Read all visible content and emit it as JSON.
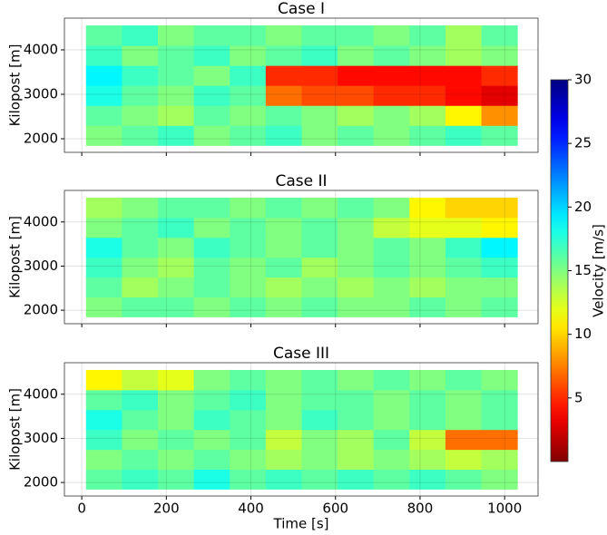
{
  "chart_data": [
    {
      "type": "heatmap",
      "title": "Case I",
      "ylabel": "Kilopost [m]",
      "x": [
        52.5,
        137.5,
        222.5,
        307.5,
        392.5,
        477.5,
        562.5,
        647.5,
        732.5,
        817.5,
        902.5,
        987.5
      ],
      "y": [
        2075,
        2525,
        2975,
        3425,
        3875,
        4325
      ],
      "values": [
        [
          15,
          16,
          17,
          15,
          16,
          17,
          15,
          16,
          15,
          16,
          17,
          16
        ],
        [
          16,
          15,
          14,
          16,
          15,
          16,
          15,
          14,
          15,
          14,
          11,
          8
        ],
        [
          18,
          16,
          15,
          17,
          16,
          7,
          6,
          6,
          5,
          5,
          4,
          3
        ],
        [
          19,
          17,
          16,
          15,
          17,
          5,
          5,
          4,
          4,
          4,
          4,
          5
        ],
        [
          17,
          15,
          16,
          17,
          15,
          16,
          17,
          15,
          16,
          15,
          14,
          15
        ],
        [
          16,
          17,
          15,
          16,
          16,
          15,
          16,
          16,
          15,
          16,
          14,
          16
        ]
      ],
      "xlim": [
        -41,
        1079
      ],
      "ylim": [
        1694,
        4714
      ],
      "xticks": [
        0,
        200,
        400,
        600,
        800,
        1000
      ],
      "yticks": [
        2000,
        3000,
        4000
      ],
      "x_tick_labels": false,
      "grid": true
    },
    {
      "type": "heatmap",
      "title": "Case II",
      "ylabel": "Kilopost [m]",
      "x": [
        52.5,
        137.5,
        222.5,
        307.5,
        392.5,
        477.5,
        562.5,
        647.5,
        732.5,
        817.5,
        902.5,
        987.5
      ],
      "y": [
        2075,
        2525,
        2975,
        3425,
        3875,
        4325
      ],
      "values": [
        [
          15,
          16,
          16,
          15,
          16,
          15,
          16,
          15,
          15,
          16,
          15,
          16
        ],
        [
          16,
          14,
          15,
          16,
          15,
          14,
          15,
          14,
          15,
          14,
          15,
          15
        ],
        [
          17,
          15,
          14,
          16,
          15,
          16,
          14,
          15,
          16,
          15,
          16,
          17
        ],
        [
          18,
          16,
          15,
          17,
          16,
          15,
          16,
          15,
          16,
          15,
          17,
          19
        ],
        [
          15,
          16,
          17,
          15,
          16,
          15,
          16,
          15,
          13,
          12,
          12,
          11
        ],
        [
          14,
          15,
          16,
          16,
          15,
          16,
          15,
          16,
          15,
          11,
          10,
          10
        ]
      ],
      "xlim": [
        -41,
        1079
      ],
      "ylim": [
        1694,
        4714
      ],
      "xticks": [
        0,
        200,
        400,
        600,
        800,
        1000
      ],
      "yticks": [
        2000,
        3000,
        4000
      ],
      "x_tick_labels": false,
      "grid": true
    },
    {
      "type": "heatmap",
      "title": "Case III",
      "ylabel": "Kilopost [m]",
      "xlabel": "Time [s]",
      "x": [
        52.5,
        137.5,
        222.5,
        307.5,
        392.5,
        477.5,
        562.5,
        647.5,
        732.5,
        817.5,
        902.5,
        987.5
      ],
      "y": [
        2075,
        2525,
        2975,
        3425,
        3875,
        4325
      ],
      "values": [
        [
          16,
          17,
          16,
          18,
          16,
          17,
          16,
          17,
          16,
          17,
          16,
          15
        ],
        [
          15,
          16,
          15,
          16,
          15,
          14,
          15,
          14,
          15,
          14,
          13,
          14
        ],
        [
          17,
          15,
          16,
          15,
          16,
          13,
          15,
          14,
          16,
          13,
          7,
          7
        ],
        [
          18,
          16,
          15,
          17,
          16,
          15,
          17,
          16,
          15,
          16,
          15,
          16
        ],
        [
          16,
          17,
          15,
          16,
          17,
          15,
          16,
          16,
          15,
          16,
          15,
          16
        ],
        [
          11,
          13,
          12,
          15,
          16,
          15,
          16,
          15,
          16,
          15,
          16,
          15
        ]
      ],
      "xlim": [
        -41,
        1079
      ],
      "ylim": [
        1694,
        4714
      ],
      "xticks": [
        0,
        200,
        400,
        600,
        800,
        1000
      ],
      "yticks": [
        2000,
        3000,
        4000
      ],
      "x_tick_labels": true,
      "grid": true
    }
  ],
  "colorbar": {
    "label": "Velocity [m/s]",
    "colormap": "jet_r",
    "lim": [
      0,
      30
    ],
    "ticks": [
      5,
      10,
      15,
      20,
      25,
      30
    ]
  }
}
